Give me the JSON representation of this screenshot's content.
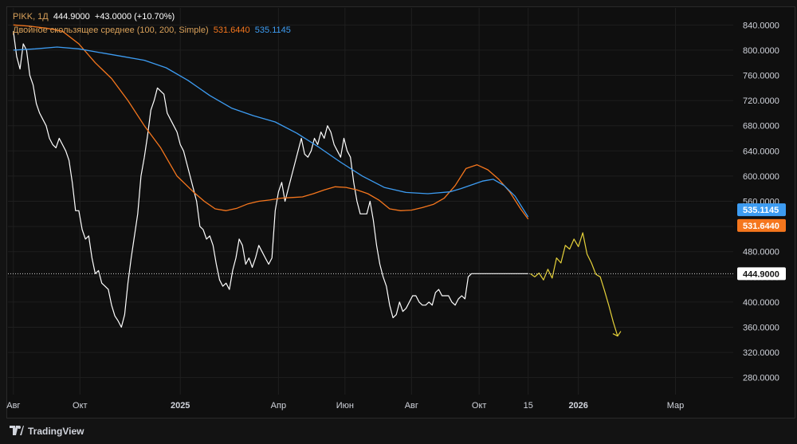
{
  "legend": {
    "ticker": "PIKK, 1Д",
    "price": "444.9000",
    "change": "+43.0000 (+10.70%)",
    "ma_title": "Двойное скользящее среднее (100, 200, Simple)",
    "ma1_value": "531.6440",
    "ma2_value": "535.1145"
  },
  "price_tags": {
    "current": "444.9000",
    "ma2": "535.1145",
    "ma1": "531.6440"
  },
  "colors": {
    "background": "#0f0f0f",
    "price_line": "#ffffff",
    "ma1": "#f5761d",
    "ma2": "#3d9cf2",
    "forecast": "#e6d23a",
    "grid": "#1f1f1f"
  },
  "footer": {
    "brand": "TradingView"
  },
  "chart_data": {
    "type": "line",
    "y_ticks": [
      "840.0000",
      "800.0000",
      "760.0000",
      "720.0000",
      "680.0000",
      "640.0000",
      "600.0000",
      "560.0000",
      "520.0000",
      "480.0000",
      "440.0000",
      "400.0000",
      "360.0000",
      "320.0000",
      "280.0000"
    ],
    "y_tick_values": [
      840,
      800,
      760,
      720,
      680,
      640,
      600,
      560,
      520,
      480,
      440,
      400,
      360,
      320,
      280
    ],
    "ylim": [
      253,
      867
    ],
    "x_ticks": [
      {
        "label": "Авг",
        "day": 0,
        "bold": false
      },
      {
        "label": "Окт",
        "day": 61,
        "bold": false
      },
      {
        "label": "2025",
        "day": 153,
        "bold": true
      },
      {
        "label": "Апр",
        "day": 243,
        "bold": false
      },
      {
        "label": "Июн",
        "day": 304,
        "bold": false
      },
      {
        "label": "Авг",
        "day": 365,
        "bold": false
      },
      {
        "label": "Окт",
        "day": 427,
        "bold": false
      },
      {
        "label": "15",
        "day": 472,
        "bold": false
      },
      {
        "label": "2026",
        "day": 518,
        "bold": true
      },
      {
        "label": "Мар",
        "day": 607,
        "bold": false
      }
    ],
    "xlim": [
      -5,
      660
    ],
    "current_price": 444.9,
    "series": [
      {
        "name": "PIKK",
        "x": [
          0,
          3,
          6,
          9,
          12,
          15,
          18,
          21,
          24,
          27,
          30,
          33,
          36,
          39,
          42,
          45,
          48,
          51,
          54,
          57,
          60,
          63,
          66,
          69,
          72,
          75,
          78,
          81,
          84,
          87,
          90,
          93,
          96,
          99,
          102,
          105,
          108,
          111,
          114,
          117,
          120,
          123,
          126,
          129,
          132,
          135,
          138,
          141,
          144,
          147,
          150,
          153,
          156,
          159,
          162,
          165,
          168,
          171,
          174,
          177,
          180,
          183,
          186,
          189,
          192,
          195,
          198,
          201,
          204,
          207,
          210,
          213,
          216,
          219,
          222,
          225,
          228,
          231,
          234,
          237,
          240,
          243,
          246,
          249,
          252,
          255,
          258,
          261,
          264,
          267,
          270,
          273,
          276,
          279,
          282,
          285,
          288,
          291,
          294,
          297,
          300,
          303,
          306,
          309,
          312,
          315,
          318,
          321,
          324,
          327,
          330,
          333,
          336,
          339,
          342,
          345,
          348,
          351,
          354,
          357,
          360,
          363,
          366,
          369,
          372,
          375,
          378,
          381,
          384,
          387,
          390,
          393,
          396,
          399,
          402,
          405,
          408,
          411,
          414,
          417,
          420,
          423,
          426,
          429,
          432,
          435,
          438,
          441,
          444,
          447,
          450,
          453,
          456,
          459,
          462,
          465,
          467,
          470,
          472
        ],
        "y": [
          830,
          790,
          770,
          810,
          800,
          760,
          745,
          715,
          700,
          690,
          680,
          660,
          650,
          645,
          660,
          650,
          640,
          625,
          590,
          545,
          545,
          515,
          500,
          505,
          470,
          445,
          450,
          430,
          425,
          420,
          395,
          378,
          370,
          360,
          380,
          430,
          470,
          505,
          540,
          600,
          630,
          665,
          705,
          720,
          740,
          735,
          730,
          700,
          690,
          680,
          670,
          650,
          640,
          620,
          600,
          580,
          560,
          520,
          515,
          500,
          505,
          490,
          460,
          435,
          425,
          430,
          420,
          450,
          470,
          500,
          490,
          460,
          470,
          455,
          470,
          490,
          480,
          470,
          460,
          470,
          545,
          575,
          590,
          560,
          580,
          600,
          620,
          640,
          660,
          635,
          630,
          640,
          660,
          650,
          670,
          660,
          680,
          670,
          650,
          640,
          630,
          660,
          640,
          630,
          590,
          560,
          540,
          540,
          540,
          560,
          530,
          490,
          460,
          440,
          425,
          395,
          375,
          380,
          400,
          385,
          390,
          400,
          410,
          410,
          400,
          395,
          395,
          400,
          395,
          415,
          420,
          410,
          410,
          410,
          400,
          395,
          405,
          410,
          405,
          440,
          445,
          445,
          445,
          445,
          445,
          445,
          445,
          445,
          445,
          445,
          445,
          445,
          445,
          445,
          445,
          445,
          445,
          445,
          444.9
        ]
      },
      {
        "name": "MA 100",
        "x": [
          0,
          15,
          30,
          45,
          60,
          75,
          90,
          105,
          120,
          135,
          150,
          165,
          175,
          185,
          195,
          205,
          215,
          225,
          235,
          245,
          255,
          265,
          275,
          285,
          295,
          305,
          315,
          325,
          335,
          345,
          355,
          365,
          375,
          385,
          395,
          405,
          415,
          425,
          435,
          445,
          455,
          465,
          472
        ],
        "y": [
          840,
          838,
          835,
          830,
          810,
          780,
          755,
          720,
          680,
          645,
          600,
          575,
          560,
          548,
          545,
          549,
          556,
          560,
          562,
          565,
          566,
          567,
          572,
          578,
          583,
          582,
          578,
          572,
          562,
          548,
          545,
          546,
          550,
          555,
          565,
          585,
          612,
          618,
          610,
          595,
          575,
          548,
          531.644
        ]
      },
      {
        "name": "MA 200",
        "x": [
          0,
          20,
          40,
          60,
          80,
          100,
          120,
          140,
          160,
          180,
          200,
          220,
          240,
          260,
          280,
          300,
          320,
          340,
          360,
          380,
          400,
          410,
          420,
          430,
          440,
          450,
          460,
          472
        ],
        "y": [
          800,
          802,
          805,
          802,
          796,
          790,
          784,
          772,
          752,
          728,
          708,
          696,
          686,
          668,
          646,
          622,
          600,
          582,
          574,
          572,
          575,
          580,
          586,
          592,
          595,
          585,
          568,
          535.1145
        ]
      },
      {
        "name": "forecast",
        "x": [
          474,
          478,
          482,
          486,
          490,
          494,
          498,
          502,
          506,
          510,
          514,
          518,
          522,
          526,
          530,
          534,
          538,
          542,
          546,
          550,
          554
        ],
        "y": [
          444.9,
          440,
          446,
          435,
          452,
          438,
          470,
          462,
          490,
          484,
          500,
          488,
          510,
          476,
          462,
          444,
          440,
          418,
          394,
          368,
          346
        ]
      }
    ]
  }
}
